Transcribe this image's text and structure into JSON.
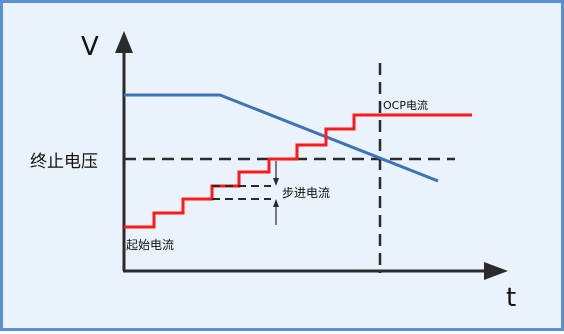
{
  "axes": {
    "y_label": "V",
    "x_label": "t"
  },
  "labels": {
    "end_voltage": "终止电压",
    "ocp_current": "OCP电流",
    "step_current": "步进电流",
    "start_current": "起始电流"
  },
  "colors": {
    "frame_border": "#5b8fd0",
    "background": "#eaf3fb",
    "voltage_line": "#3d73b4",
    "current_steps": "#ff1a1a",
    "axes": "#2b2b2b",
    "dashed": "#2b2b2b"
  }
}
